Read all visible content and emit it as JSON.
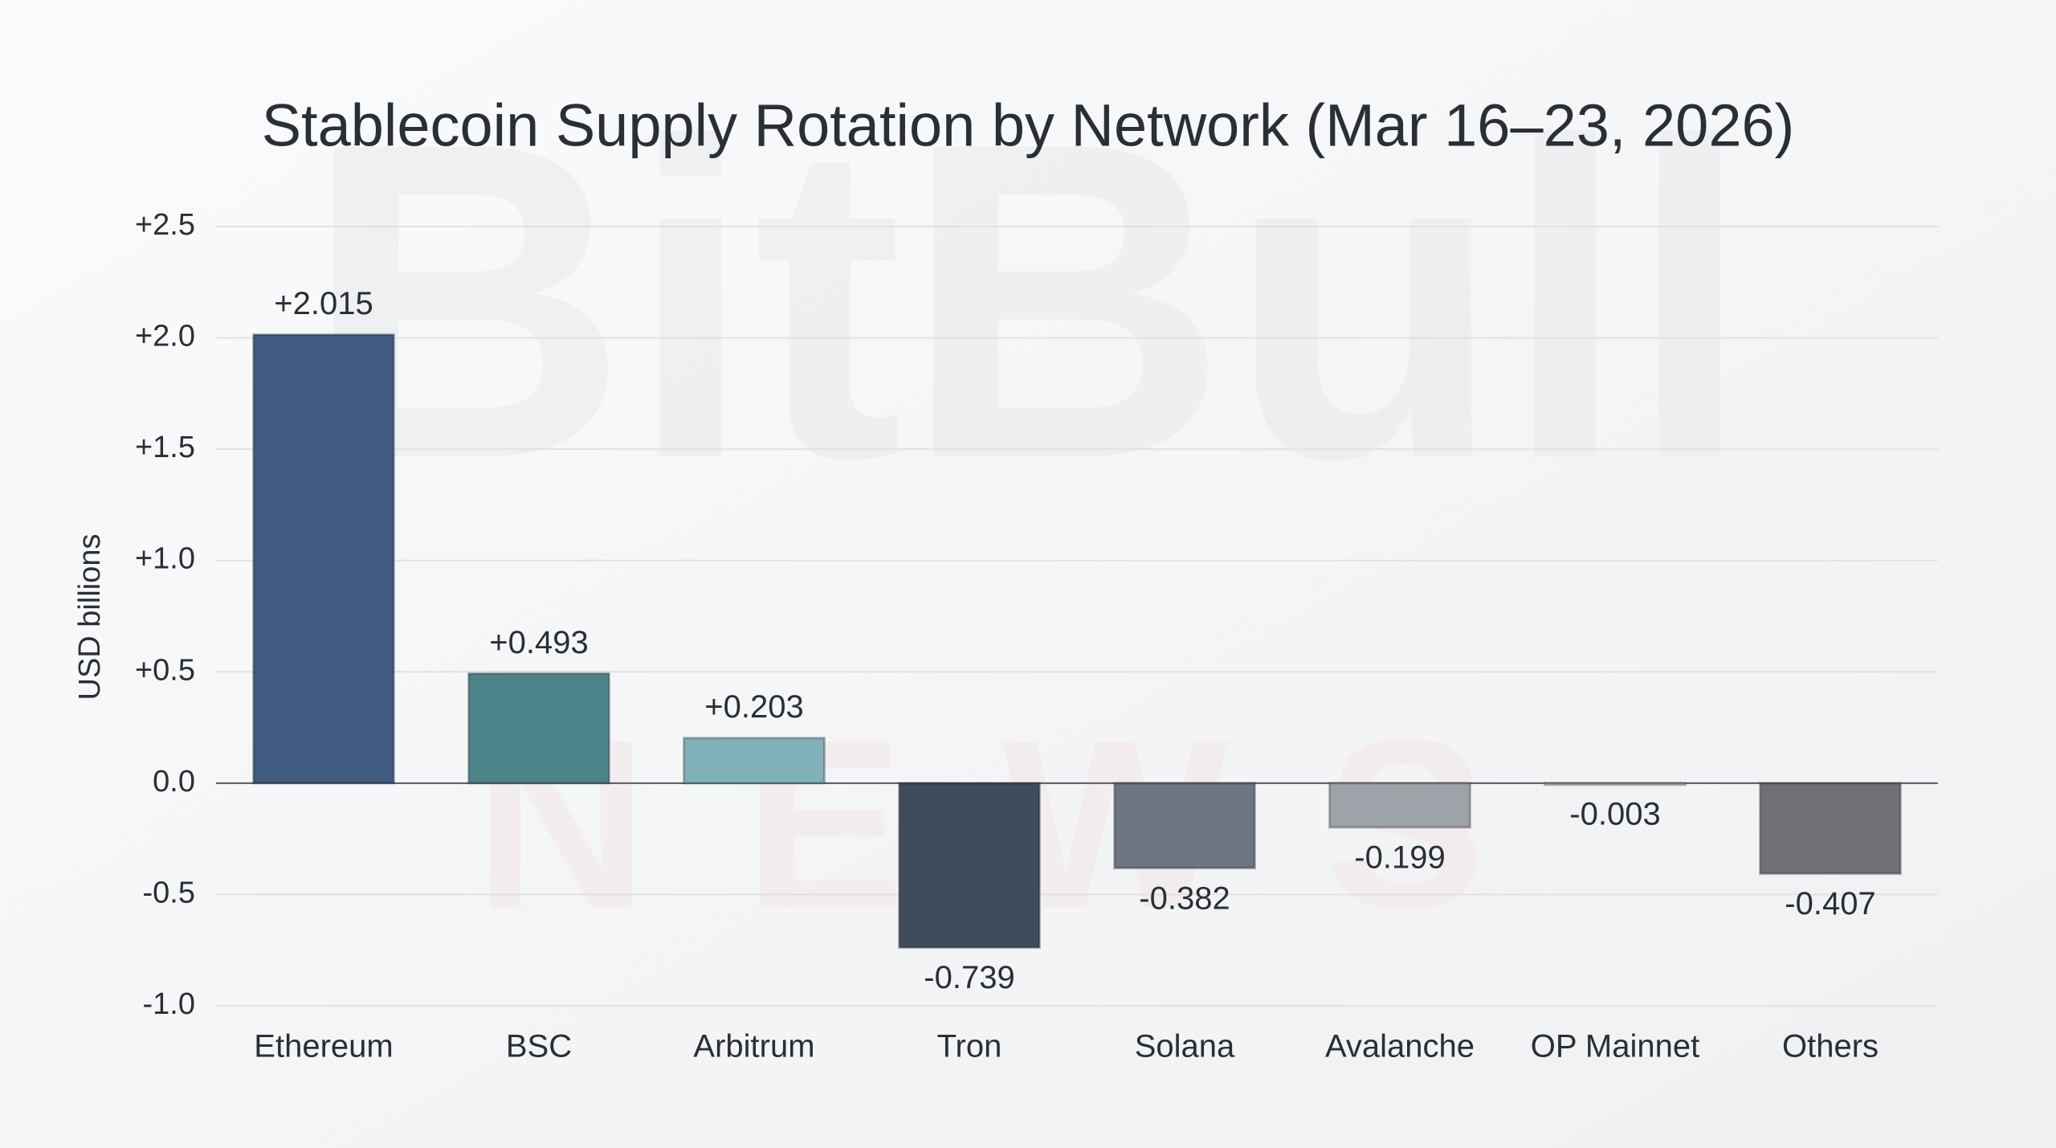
{
  "chart_data": {
    "type": "bar",
    "title": "Stablecoin Supply Rotation by Network (Mar 16–23, 2026)",
    "y_label": "USD billions",
    "watermark": [
      "BitBull",
      "NEWS"
    ],
    "categories": [
      "Ethereum",
      "BSC",
      "Arbitrum",
      "Tron",
      "Solana",
      "Avalanche",
      "OP Mainnet",
      "Others"
    ],
    "values": [
      2.015,
      0.493,
      0.203,
      -0.739,
      -0.382,
      -0.199,
      -0.003,
      -0.407
    ],
    "value_labels": [
      "+2.015",
      "+0.493",
      "+0.203",
      "-0.739",
      "-0.382",
      "-0.199",
      "-0.003",
      "-0.407"
    ],
    "colors": [
      "#3f5b7f",
      "#4b8389",
      "#80b1b9",
      "#3f4c5d",
      "#6c7581",
      "#9ea3aa",
      "#b2b6ba",
      "#6f7073"
    ],
    "ylim": [
      -1.0,
      2.5
    ],
    "yticks": [
      {
        "value": 2.5,
        "label": "+2.5"
      },
      {
        "value": 2.0,
        "label": "+2.0"
      },
      {
        "value": 1.5,
        "label": "+1.5"
      },
      {
        "value": 1.0,
        "label": "+1.0"
      },
      {
        "value": 0.5,
        "label": "+0.5"
      },
      {
        "value": 0,
        "label": "0.0"
      },
      -0.5,
      {
        "value": -1.0,
        "label": "-1.0"
      }
    ],
    "grid": true
  }
}
